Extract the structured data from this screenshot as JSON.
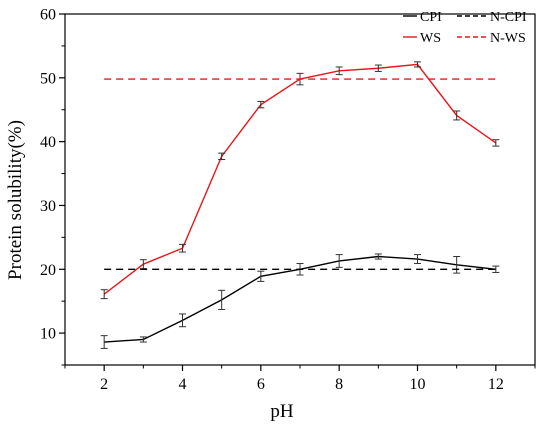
{
  "chart_data": {
    "type": "line",
    "xlabel": "pH",
    "ylabel": "Protein solubility(%)",
    "xlim": [
      1,
      13
    ],
    "ylim": [
      5,
      60
    ],
    "xticks": [
      2,
      4,
      6,
      8,
      10,
      12
    ],
    "yticks": [
      10,
      20,
      30,
      40,
      50,
      60
    ],
    "x": [
      2,
      3,
      4,
      5,
      6,
      7,
      8,
      9,
      10,
      11,
      12
    ],
    "grid": false,
    "legend_position": "top-right",
    "series": [
      {
        "name": "CPI",
        "color": "#000000",
        "style": "solid",
        "values": [
          8.6,
          9.0,
          12.0,
          15.2,
          18.9,
          20.0,
          21.3,
          22.0,
          21.6,
          20.7,
          20.0
        ],
        "errors": [
          1.0,
          0.4,
          1.0,
          1.5,
          0.8,
          0.9,
          1.0,
          0.4,
          0.7,
          1.3,
          0.5
        ]
      },
      {
        "name": "WS",
        "color": "#e8161b",
        "style": "solid",
        "values": [
          16.1,
          20.8,
          23.3,
          37.7,
          45.8,
          49.8,
          51.1,
          51.5,
          52.1,
          44.1,
          39.8
        ],
        "errors": [
          0.7,
          0.7,
          0.6,
          0.5,
          0.5,
          0.9,
          0.6,
          0.5,
          0.4,
          0.7,
          0.5
        ]
      },
      {
        "name": "N-CPI",
        "color": "#000000",
        "style": "dashed",
        "constant": 20.0
      },
      {
        "name": "N-WS",
        "color": "#e8161b",
        "style": "dashed",
        "constant": 49.8
      }
    ]
  }
}
